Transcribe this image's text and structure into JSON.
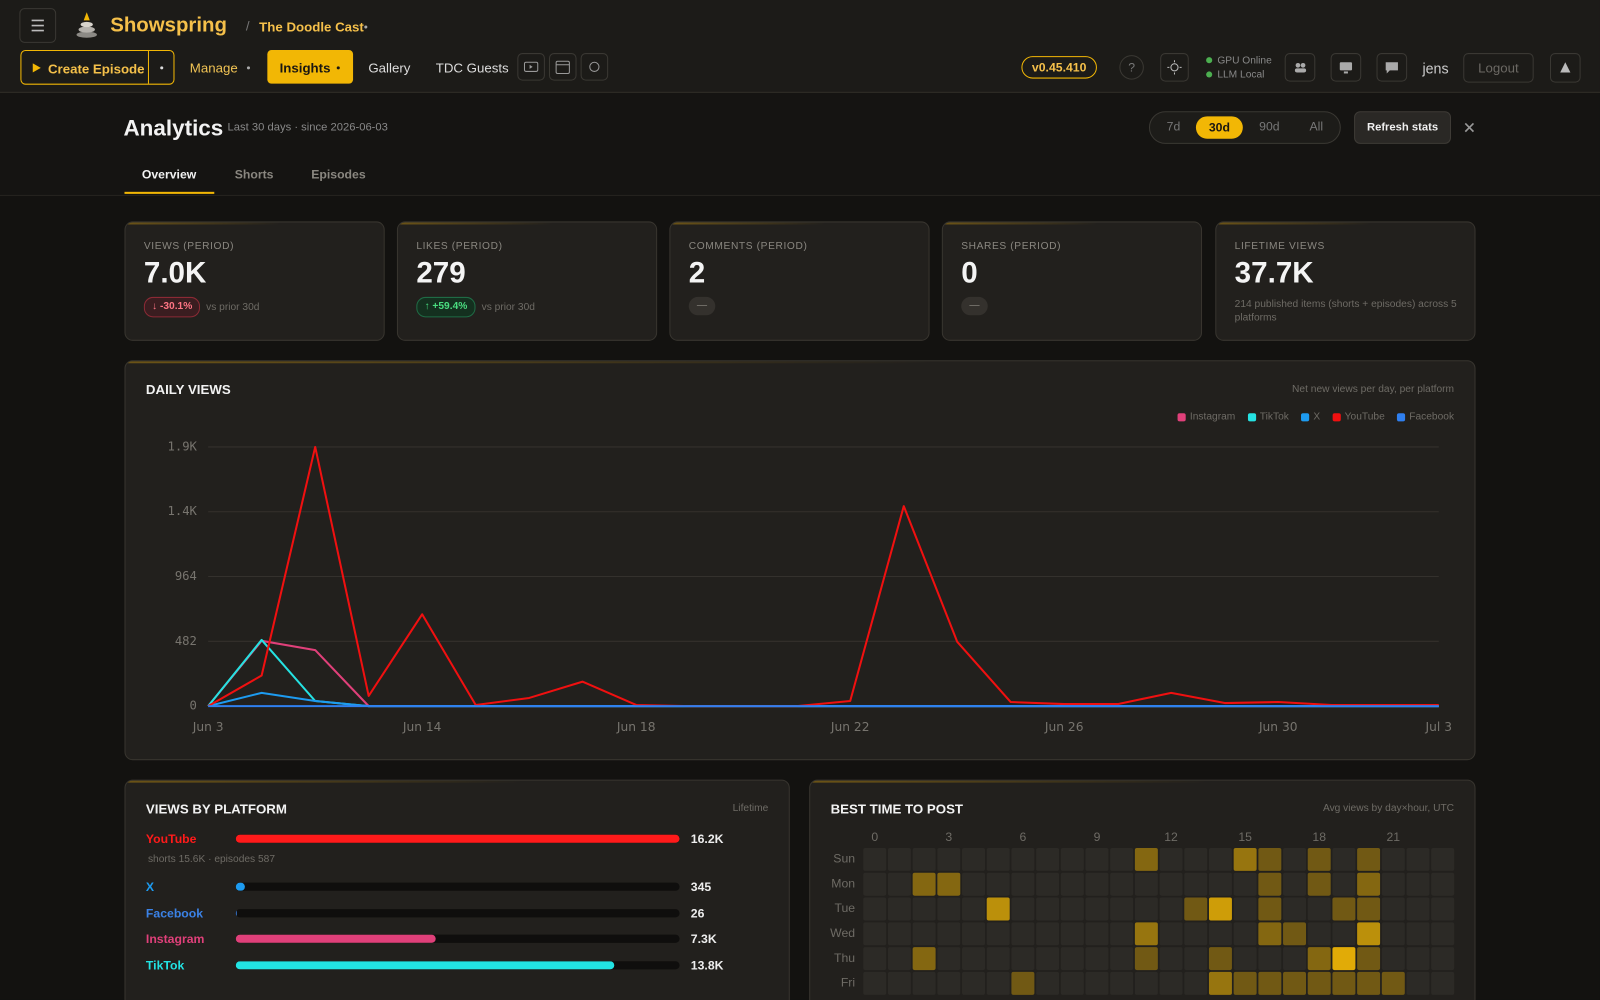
{
  "header": {
    "brand": "Showspring",
    "breadcrumb": "The Doodle Cast",
    "create": "Create Episode",
    "nav": [
      "Manage",
      "Insights",
      "Gallery",
      "TDC Guests"
    ],
    "version": "v0.45.410",
    "help": "?",
    "status": [
      "GPU Online",
      "LLM Local"
    ],
    "user": "jens",
    "logout": "Logout"
  },
  "analytics": {
    "title": "Analytics",
    "subtitle": "Last 30 days · since 2026-06-03",
    "ranges": [
      "7d",
      "30d",
      "90d",
      "All"
    ],
    "refresh": "Refresh stats",
    "tabs": [
      "Overview",
      "Shorts",
      "Episodes"
    ]
  },
  "kpis": [
    {
      "label": "VIEWS (PERIOD)",
      "value": "7.0K",
      "badge": "↓ -30.1%",
      "note": "vs prior 30d"
    },
    {
      "label": "LIKES (PERIOD)",
      "value": "279",
      "badge": "↑ +59.4%",
      "note": "vs prior 30d"
    },
    {
      "label": "COMMENTS (PERIOD)",
      "value": "2",
      "badge": "—"
    },
    {
      "label": "SHARES (PERIOD)",
      "value": "0",
      "badge": "—"
    },
    {
      "label": "LIFETIME VIEWS",
      "value": "37.7K",
      "note": "214 published items (shorts + episodes) across 5 platforms"
    }
  ],
  "chart_data": [
    {
      "type": "line",
      "title": "DAILY VIEWS",
      "subtitle": "Net new views per day, per platform",
      "categories": [
        "Jun 3",
        null,
        null,
        null,
        "Jun 14",
        null,
        null,
        null,
        "Jun 18",
        null,
        null,
        null,
        "Jun 22",
        null,
        null,
        null,
        "Jun 26",
        null,
        null,
        null,
        "Jun 30",
        null,
        null,
        "Jul 3"
      ],
      "series": [
        {
          "name": "Instagram",
          "color": "#e0407a",
          "values": [
            0,
            486,
            417,
            0,
            0,
            0,
            0,
            0,
            0,
            0,
            0,
            0,
            0,
            0,
            0,
            0,
            0,
            0,
            0,
            0,
            0,
            0,
            0,
            0
          ]
        },
        {
          "name": "TikTok",
          "color": "#25e2e2",
          "values": [
            0,
            493,
            38,
            0,
            0,
            0,
            0,
            0,
            0,
            0,
            0,
            0,
            0,
            0,
            0,
            0,
            0,
            0,
            0,
            0,
            0,
            0,
            0,
            0
          ]
        },
        {
          "name": "X",
          "color": "#1d9bf0",
          "values": [
            0,
            99,
            38,
            0,
            0,
            0,
            0,
            0,
            0,
            0,
            0,
            0,
            0,
            0,
            0,
            0,
            0,
            0,
            0,
            0,
            0,
            0,
            0,
            0
          ]
        },
        {
          "name": "YouTube",
          "color": "#f01010",
          "values": [
            0,
            228,
            1928,
            76,
            683,
            8,
            61,
            182,
            8,
            0,
            0,
            0,
            38,
            1488,
            478,
            30,
            15,
            15,
            99,
            23,
            30,
            8,
            8,
            8
          ]
        },
        {
          "name": "Facebook",
          "color": "#2f7fef",
          "values": [
            0,
            0,
            0,
            0,
            0,
            0,
            0,
            0,
            0,
            0,
            0,
            0,
            0,
            0,
            0,
            0,
            0,
            0,
            0,
            0,
            0,
            0,
            0,
            0
          ]
        }
      ],
      "ylim": [
        0,
        1928
      ],
      "yticks": [
        0,
        482,
        964,
        {
          "value": 1446,
          "label": "1.4K"
        },
        {
          "value": 1928,
          "label": "1.9K"
        }
      ],
      "grid": true,
      "legend": "top-right"
    },
    {
      "type": "bar",
      "orientation": "horizontal",
      "title": "VIEWS BY PLATFORM",
      "subtitle": "Lifetime",
      "categories": [
        "YouTube",
        "X",
        "Facebook",
        "Instagram",
        "TikTok"
      ],
      "values": [
        16200,
        345,
        26,
        7300,
        13800
      ],
      "value_labels": [
        "16.2K",
        "345",
        "26",
        "7.3K",
        "13.8K"
      ],
      "colors": [
        "#ff1a1a",
        "#1d9bf0",
        "#3b82e6",
        "#e0407a",
        "#22e3e3"
      ],
      "details": [
        "shorts 15.6K · episodes 587",
        null,
        null,
        null,
        null
      ]
    },
    {
      "type": "heatmap",
      "title": "BEST TIME TO POST",
      "subtitle": "Avg views by day×hour, UTC",
      "rows": [
        "Sun",
        "Mon",
        "Tue",
        "Wed",
        "Thu",
        "Fri"
      ],
      "xticks": [
        0,
        3,
        6,
        9,
        12,
        15,
        18,
        21
      ],
      "color": "#f2b705",
      "values": [
        [
          0,
          0,
          0,
          0,
          0,
          0,
          0,
          0,
          0,
          0,
          0,
          3,
          0,
          0,
          0,
          4,
          2,
          0,
          2,
          0,
          2,
          0,
          0,
          0
        ],
        [
          0,
          0,
          3,
          3,
          0,
          0,
          0,
          0,
          0,
          0,
          0,
          0,
          0,
          0,
          0,
          0,
          2,
          0,
          2,
          0,
          3,
          0,
          0,
          0
        ],
        [
          0,
          0,
          0,
          0,
          0,
          6,
          0,
          0,
          0,
          0,
          0,
          0,
          0,
          2,
          7,
          0,
          2,
          0,
          0,
          2,
          2,
          0,
          0,
          0
        ],
        [
          0,
          0,
          0,
          0,
          0,
          0,
          0,
          0,
          0,
          0,
          0,
          4,
          0,
          0,
          0,
          0,
          3,
          2,
          0,
          0,
          6,
          0,
          0,
          0
        ],
        [
          0,
          0,
          3,
          0,
          0,
          0,
          0,
          0,
          0,
          0,
          0,
          2,
          0,
          0,
          2,
          0,
          0,
          0,
          3,
          8,
          2,
          0,
          0,
          0
        ],
        [
          0,
          0,
          0,
          0,
          0,
          0,
          2,
          0,
          0,
          0,
          0,
          0,
          0,
          0,
          4,
          2,
          2,
          2,
          2,
          2,
          2,
          2,
          0,
          0
        ]
      ]
    }
  ]
}
